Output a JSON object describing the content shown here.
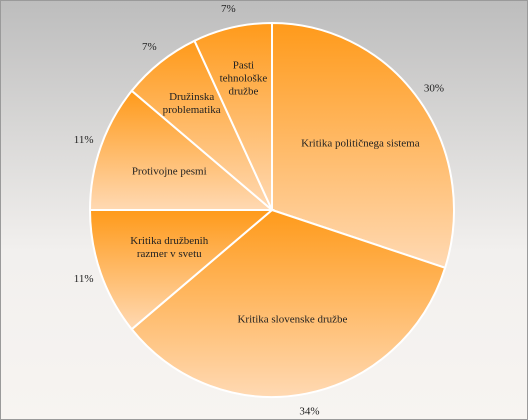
{
  "chart_data": {
    "type": "pie",
    "categories": [
      "Kritika političnega sistema",
      "Kritika slovenske družbe",
      "Kritika družbenih razmer v svetu",
      "Protivojne pesmi",
      "Družinska problematika",
      "Pasti tehnološke družbe"
    ],
    "values": [
      30,
      34,
      11,
      11,
      7,
      7
    ],
    "value_labels": [
      "30%",
      "34%",
      "11%",
      "11%",
      "7%",
      "7%"
    ],
    "color": "#ff9a1a"
  }
}
